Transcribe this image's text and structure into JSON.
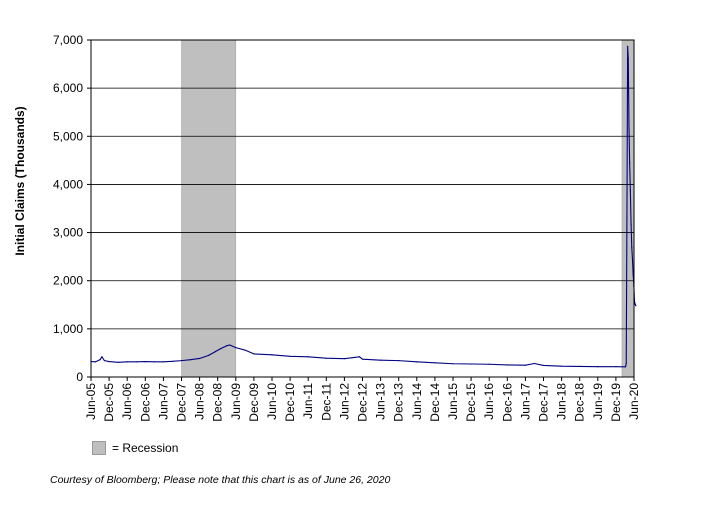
{
  "chart_data": {
    "type": "line",
    "title": "",
    "ylabel": "Initial Claims (Thousands)",
    "xlabel": "",
    "ylim": [
      0,
      7000
    ],
    "yticks": [
      0,
      1000,
      2000,
      3000,
      4000,
      5000,
      6000,
      7000
    ],
    "ytick_labels": [
      "0",
      "1,000",
      "2,000",
      "3,000",
      "4,000",
      "5,000",
      "6,000",
      "7,000"
    ],
    "xlim": [
      "2005-06",
      "2020-06"
    ],
    "xtick_labels": [
      "Jun-05",
      "Dec-05",
      "Jun-06",
      "Dec-06",
      "Jun-07",
      "Dec-07",
      "Jun-08",
      "Dec-08",
      "Jun-09",
      "Dec-09",
      "Jun-10",
      "Dec-10",
      "Jun-11",
      "Dec-11",
      "Jun-12",
      "Dec-12",
      "Jun-13",
      "Dec-13",
      "Jun-14",
      "Dec-14",
      "Jun-15",
      "Dec-15",
      "Jun-16",
      "Dec-16",
      "Jun-17",
      "Dec-17",
      "Jun-18",
      "Dec-18",
      "Jun-19",
      "Dec-19",
      "Jun-20"
    ],
    "grid": true,
    "recessions": [
      {
        "start": "2007-12",
        "end": "2009-06"
      },
      {
        "start": "2020-02",
        "end": "2020-06"
      }
    ],
    "series": [
      {
        "color": "#000080",
        "points": [
          [
            "2005-06-01",
            320
          ],
          [
            "2005-07-15",
            315
          ],
          [
            "2005-09-01",
            360
          ],
          [
            "2005-09-20",
            420
          ],
          [
            "2005-10-15",
            340
          ],
          [
            "2005-12-01",
            320
          ],
          [
            "2006-03-01",
            305
          ],
          [
            "2006-06-01",
            315
          ],
          [
            "2006-09-01",
            315
          ],
          [
            "2006-12-01",
            320
          ],
          [
            "2007-03-01",
            315
          ],
          [
            "2007-06-01",
            315
          ],
          [
            "2007-09-01",
            325
          ],
          [
            "2007-12-01",
            340
          ],
          [
            "2008-03-01",
            360
          ],
          [
            "2008-06-01",
            385
          ],
          [
            "2008-09-01",
            450
          ],
          [
            "2008-11-01",
            520
          ],
          [
            "2009-01-01",
            590
          ],
          [
            "2009-03-01",
            650
          ],
          [
            "2009-04-01",
            665
          ],
          [
            "2009-06-01",
            610
          ],
          [
            "2009-09-01",
            560
          ],
          [
            "2009-12-01",
            480
          ],
          [
            "2010-06-01",
            460
          ],
          [
            "2010-12-01",
            430
          ],
          [
            "2011-06-01",
            420
          ],
          [
            "2011-12-01",
            390
          ],
          [
            "2012-06-01",
            380
          ],
          [
            "2012-11-01",
            420
          ],
          [
            "2012-12-01",
            370
          ],
          [
            "2013-06-01",
            350
          ],
          [
            "2013-12-01",
            340
          ],
          [
            "2014-06-01",
            315
          ],
          [
            "2014-12-01",
            295
          ],
          [
            "2015-06-01",
            275
          ],
          [
            "2015-12-01",
            270
          ],
          [
            "2016-06-01",
            265
          ],
          [
            "2016-12-01",
            250
          ],
          [
            "2017-06-01",
            245
          ],
          [
            "2017-09-01",
            280
          ],
          [
            "2017-12-01",
            240
          ],
          [
            "2018-06-01",
            225
          ],
          [
            "2018-12-01",
            220
          ],
          [
            "2019-06-01",
            215
          ],
          [
            "2019-12-01",
            215
          ],
          [
            "2020-03-07",
            212
          ],
          [
            "2020-03-14",
            282
          ],
          [
            "2020-03-21",
            3307
          ],
          [
            "2020-03-28",
            6867
          ],
          [
            "2020-04-04",
            6615
          ],
          [
            "2020-04-11",
            5237
          ],
          [
            "2020-04-18",
            4442
          ],
          [
            "2020-04-25",
            3867
          ],
          [
            "2020-05-02",
            3176
          ],
          [
            "2020-05-09",
            2687
          ],
          [
            "2020-05-16",
            2446
          ],
          [
            "2020-05-23",
            2123
          ],
          [
            "2020-05-30",
            1897
          ],
          [
            "2020-06-06",
            1566
          ],
          [
            "2020-06-13",
            1508
          ],
          [
            "2020-06-20",
            1480
          ]
        ]
      }
    ]
  },
  "legend": {
    "recession_label": "= Recession"
  },
  "colors": {
    "recession_fill": "#bfbfbf",
    "line": "#000080",
    "grid": "#000000"
  },
  "footnote": "Courtesy of Bloomberg; Please note that this chart is as of June 26, 2020"
}
